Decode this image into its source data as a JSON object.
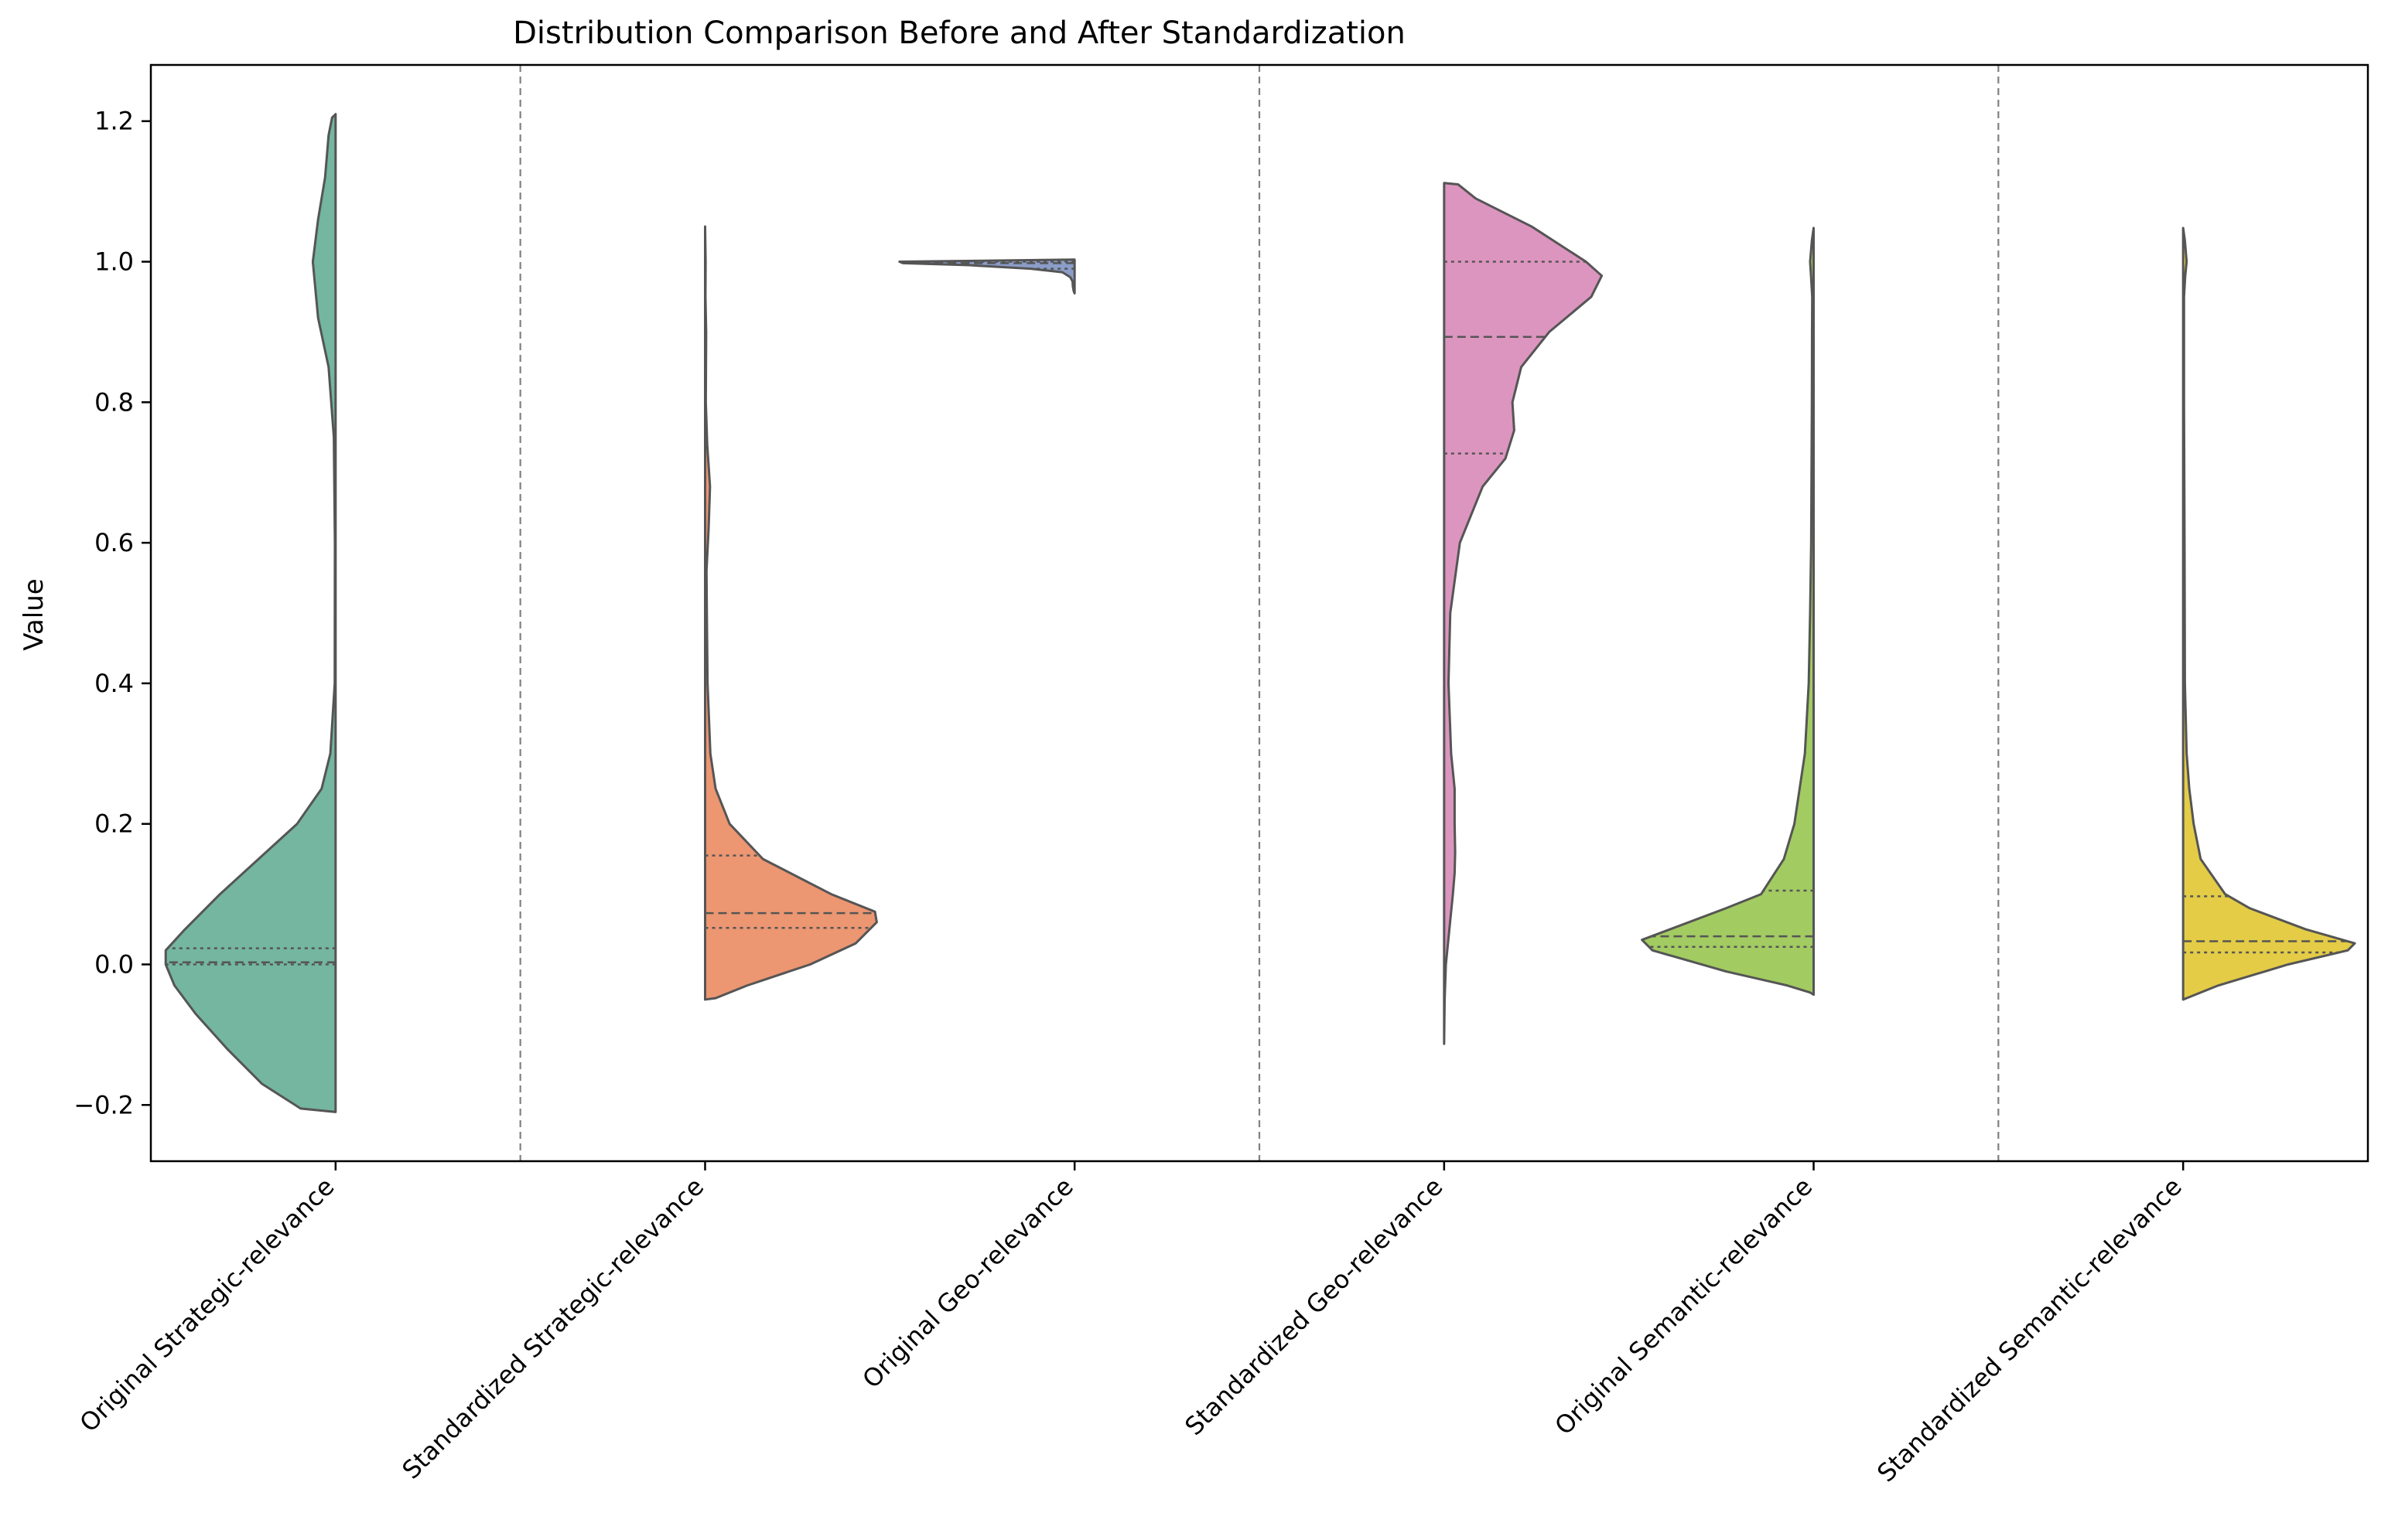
{
  "chart_data": {
    "type": "violin",
    "title": "Distribution Comparison Before and After Standardization",
    "xlabel": "",
    "ylabel": "Value",
    "ylim": [
      -0.28,
      1.28
    ],
    "yticks": [
      -0.2,
      0.0,
      0.2,
      0.4,
      0.6,
      0.8,
      1.0,
      1.2
    ],
    "ytick_labels": [
      "−0.2",
      "0.0",
      "0.2",
      "0.4",
      "0.6",
      "0.8",
      "1.0",
      "1.2"
    ],
    "grid": false,
    "separators_after_category_positions": [
      0.5,
      2.5,
      4.5
    ],
    "categories": [
      "Original Strategic-relevance",
      "Standardized Strategic-relevance",
      "Original Geo-relevance",
      "Standardized Geo-relevance",
      "Original Semantic-relevance",
      "Standardized Semantic-relevance"
    ],
    "series": [
      {
        "name": "Original Strategic-relevance",
        "position": 0,
        "side": "left",
        "color": "#74b69f",
        "range": [
          -0.21,
          1.21
        ],
        "q1": 0.0,
        "median": 0.003,
        "q3": 0.023,
        "density": [
          [
            -0.21,
            0.0
          ],
          [
            -0.205,
            0.2
          ],
          [
            -0.17,
            0.42
          ],
          [
            -0.12,
            0.62
          ],
          [
            -0.07,
            0.8
          ],
          [
            -0.03,
            0.92
          ],
          [
            0.0,
            0.97
          ],
          [
            0.02,
            0.97
          ],
          [
            0.05,
            0.86
          ],
          [
            0.1,
            0.66
          ],
          [
            0.15,
            0.44
          ],
          [
            0.2,
            0.22
          ],
          [
            0.25,
            0.08
          ],
          [
            0.3,
            0.03
          ],
          [
            0.4,
            0.005
          ],
          [
            0.6,
            0.004
          ],
          [
            0.75,
            0.01
          ],
          [
            0.85,
            0.04
          ],
          [
            0.92,
            0.1
          ],
          [
            1.0,
            0.13
          ],
          [
            1.06,
            0.1
          ],
          [
            1.12,
            0.06
          ],
          [
            1.18,
            0.04
          ],
          [
            1.205,
            0.02
          ],
          [
            1.21,
            0.0
          ]
        ]
      },
      {
        "name": "Standardized Strategic-relevance",
        "position": 1,
        "side": "right",
        "color": "#ec9672",
        "range": [
          -0.05,
          1.05
        ],
        "q1": 0.052,
        "median": 0.073,
        "q3": 0.155,
        "density": [
          [
            -0.05,
            0.0
          ],
          [
            -0.048,
            0.06
          ],
          [
            -0.03,
            0.24
          ],
          [
            0.0,
            0.6
          ],
          [
            0.03,
            0.86
          ],
          [
            0.06,
            0.98
          ],
          [
            0.075,
            0.97
          ],
          [
            0.1,
            0.72
          ],
          [
            0.15,
            0.33
          ],
          [
            0.2,
            0.14
          ],
          [
            0.25,
            0.06
          ],
          [
            0.3,
            0.03
          ],
          [
            0.4,
            0.014
          ],
          [
            0.5,
            0.01
          ],
          [
            0.56,
            0.008
          ],
          [
            0.62,
            0.02
          ],
          [
            0.68,
            0.028
          ],
          [
            0.74,
            0.012
          ],
          [
            0.8,
            0.004
          ],
          [
            0.9,
            0.006
          ],
          [
            0.95,
            0.002
          ],
          [
            1.0,
            0.003
          ],
          [
            1.05,
            0.0
          ]
        ]
      },
      {
        "name": "Original Geo-relevance",
        "position": 2,
        "side": "left",
        "color": "#8b9dc8",
        "range": [
          0.955,
          1.0
        ],
        "q1": 0.99,
        "median": 0.998,
        "q3": 1.0,
        "density": [
          [
            0.955,
            0.0
          ],
          [
            0.958,
            0.005
          ],
          [
            0.965,
            0.01
          ],
          [
            0.972,
            0.012
          ],
          [
            0.978,
            0.025
          ],
          [
            0.985,
            0.07
          ],
          [
            0.99,
            0.25
          ],
          [
            0.995,
            0.6
          ],
          [
            0.998,
            0.98
          ],
          [
            1.0,
            1.0
          ],
          [
            1.003,
            0.0
          ]
        ]
      },
      {
        "name": "Standardized Geo-relevance",
        "position": 3,
        "side": "right",
        "color": "#dc95bf",
        "range": [
          -0.11,
          1.11
        ],
        "q1": 0.727,
        "median": 0.893,
        "q3": 1.0,
        "density": [
          [
            -0.113,
            0.0
          ],
          [
            -0.05,
            0.003
          ],
          [
            0.0,
            0.01
          ],
          [
            0.05,
            0.03
          ],
          [
            0.1,
            0.05
          ],
          [
            0.13,
            0.06
          ],
          [
            0.16,
            0.063
          ],
          [
            0.2,
            0.06
          ],
          [
            0.25,
            0.06
          ],
          [
            0.3,
            0.04
          ],
          [
            0.4,
            0.025
          ],
          [
            0.5,
            0.035
          ],
          [
            0.6,
            0.09
          ],
          [
            0.68,
            0.22
          ],
          [
            0.72,
            0.35
          ],
          [
            0.76,
            0.4
          ],
          [
            0.8,
            0.39
          ],
          [
            0.85,
            0.44
          ],
          [
            0.9,
            0.6
          ],
          [
            0.95,
            0.84
          ],
          [
            0.98,
            0.9
          ],
          [
            1.0,
            0.81
          ],
          [
            1.05,
            0.5
          ],
          [
            1.09,
            0.18
          ],
          [
            1.11,
            0.08
          ],
          [
            1.112,
            0.0
          ]
        ]
      },
      {
        "name": "Original Semantic-relevance",
        "position": 4,
        "side": "left",
        "color": "#a2cb62",
        "range": [
          -0.04,
          1.05
        ],
        "q1": 0.025,
        "median": 0.04,
        "q3": 0.105,
        "density": [
          [
            -0.043,
            0.0
          ],
          [
            -0.04,
            0.02
          ],
          [
            -0.03,
            0.15
          ],
          [
            -0.01,
            0.5
          ],
          [
            0.02,
            0.92
          ],
          [
            0.035,
            0.98
          ],
          [
            0.05,
            0.82
          ],
          [
            0.08,
            0.5
          ],
          [
            0.1,
            0.3
          ],
          [
            0.15,
            0.17
          ],
          [
            0.2,
            0.11
          ],
          [
            0.3,
            0.05
          ],
          [
            0.4,
            0.028
          ],
          [
            0.5,
            0.02
          ],
          [
            0.6,
            0.014
          ],
          [
            0.7,
            0.012
          ],
          [
            0.8,
            0.01
          ],
          [
            0.9,
            0.009
          ],
          [
            0.95,
            0.008
          ],
          [
            0.98,
            0.015
          ],
          [
            1.0,
            0.02
          ],
          [
            1.03,
            0.01
          ],
          [
            1.048,
            0.0
          ]
        ]
      },
      {
        "name": "Standardized Semantic-relevance",
        "position": 5,
        "side": "right",
        "color": "#e4cc46",
        "range": [
          -0.05,
          1.05
        ],
        "q1": 0.017,
        "median": 0.033,
        "q3": 0.097,
        "density": [
          [
            -0.05,
            0.0
          ],
          [
            -0.048,
            0.02
          ],
          [
            -0.03,
            0.2
          ],
          [
            0.0,
            0.6
          ],
          [
            0.02,
            0.94
          ],
          [
            0.03,
            0.98
          ],
          [
            0.05,
            0.7
          ],
          [
            0.08,
            0.38
          ],
          [
            0.1,
            0.24
          ],
          [
            0.15,
            0.1
          ],
          [
            0.2,
            0.06
          ],
          [
            0.25,
            0.035
          ],
          [
            0.3,
            0.02
          ],
          [
            0.4,
            0.01
          ],
          [
            0.6,
            0.008
          ],
          [
            0.8,
            0.005
          ],
          [
            0.95,
            0.005
          ],
          [
            0.98,
            0.012
          ],
          [
            1.0,
            0.02
          ],
          [
            1.03,
            0.01
          ],
          [
            1.048,
            0.0
          ]
        ]
      }
    ]
  }
}
